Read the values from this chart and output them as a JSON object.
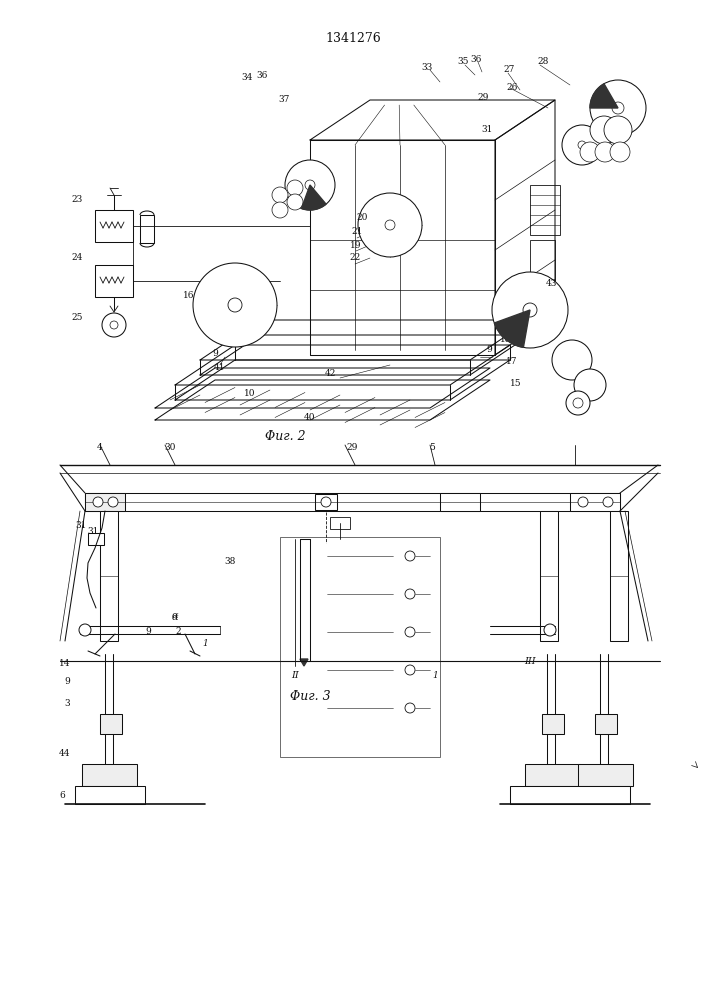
{
  "title": "1341276",
  "bg_color": "#ffffff",
  "line_color": "#111111",
  "fig_width": 7.07,
  "fig_height": 10.0,
  "dpi": 100,
  "fig2_caption": "Φиг. 2",
  "fig3_caption": "Φиг. 3"
}
